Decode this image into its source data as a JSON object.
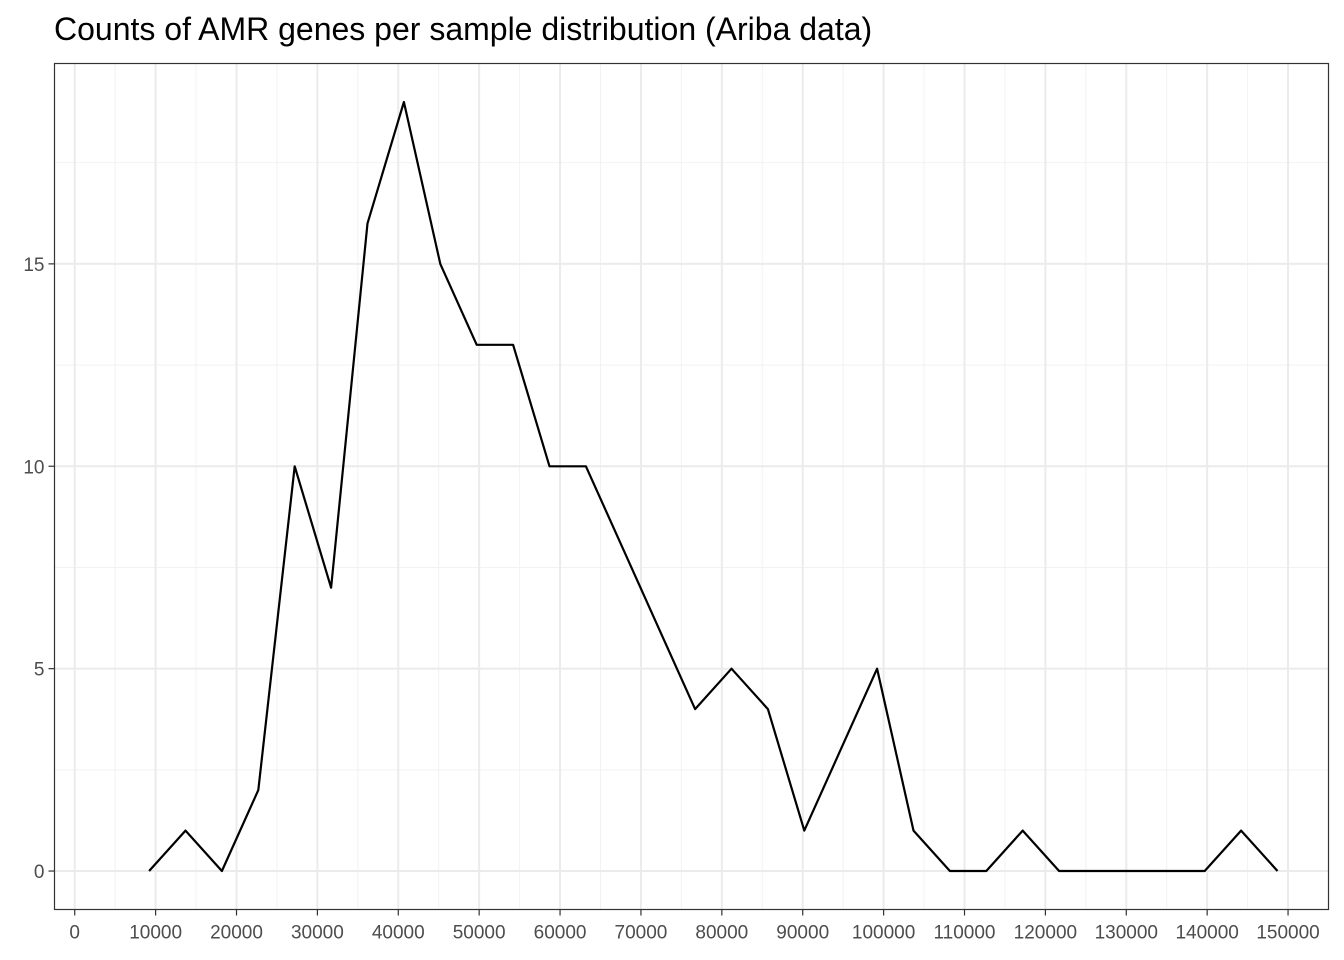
{
  "chart_data": {
    "type": "line",
    "title": "Counts of AMR genes per sample distribution (Ariba data)",
    "xlabel": "",
    "ylabel": "",
    "xlim": [
      -2500,
      155000
    ],
    "ylim": [
      -0.95,
      19.95
    ],
    "x_ticks": [
      0,
      10000,
      20000,
      30000,
      40000,
      50000,
      60000,
      70000,
      80000,
      90000,
      100000,
      110000,
      120000,
      130000,
      140000,
      150000
    ],
    "y_ticks": [
      0,
      5,
      10,
      15
    ],
    "grid": true,
    "legend": "none",
    "series": [
      {
        "color": "#000000",
        "x": [
          9200,
          13700,
          18200,
          22700,
          27200,
          31700,
          36200,
          40700,
          45200,
          49700,
          54200,
          58700,
          63200,
          67700,
          72200,
          76700,
          81200,
          85700,
          90200,
          94700,
          99200,
          103700,
          108200,
          112700,
          117200,
          121700,
          126200,
          130700,
          135200,
          139700,
          144200,
          148700
        ],
        "y": [
          0,
          1,
          0,
          2,
          10,
          7,
          16,
          19,
          15,
          13,
          13,
          10,
          10,
          8,
          6,
          4,
          5,
          4,
          1,
          3,
          5,
          1,
          0,
          0,
          1,
          0,
          0,
          0,
          0,
          0,
          1,
          0
        ]
      }
    ]
  }
}
